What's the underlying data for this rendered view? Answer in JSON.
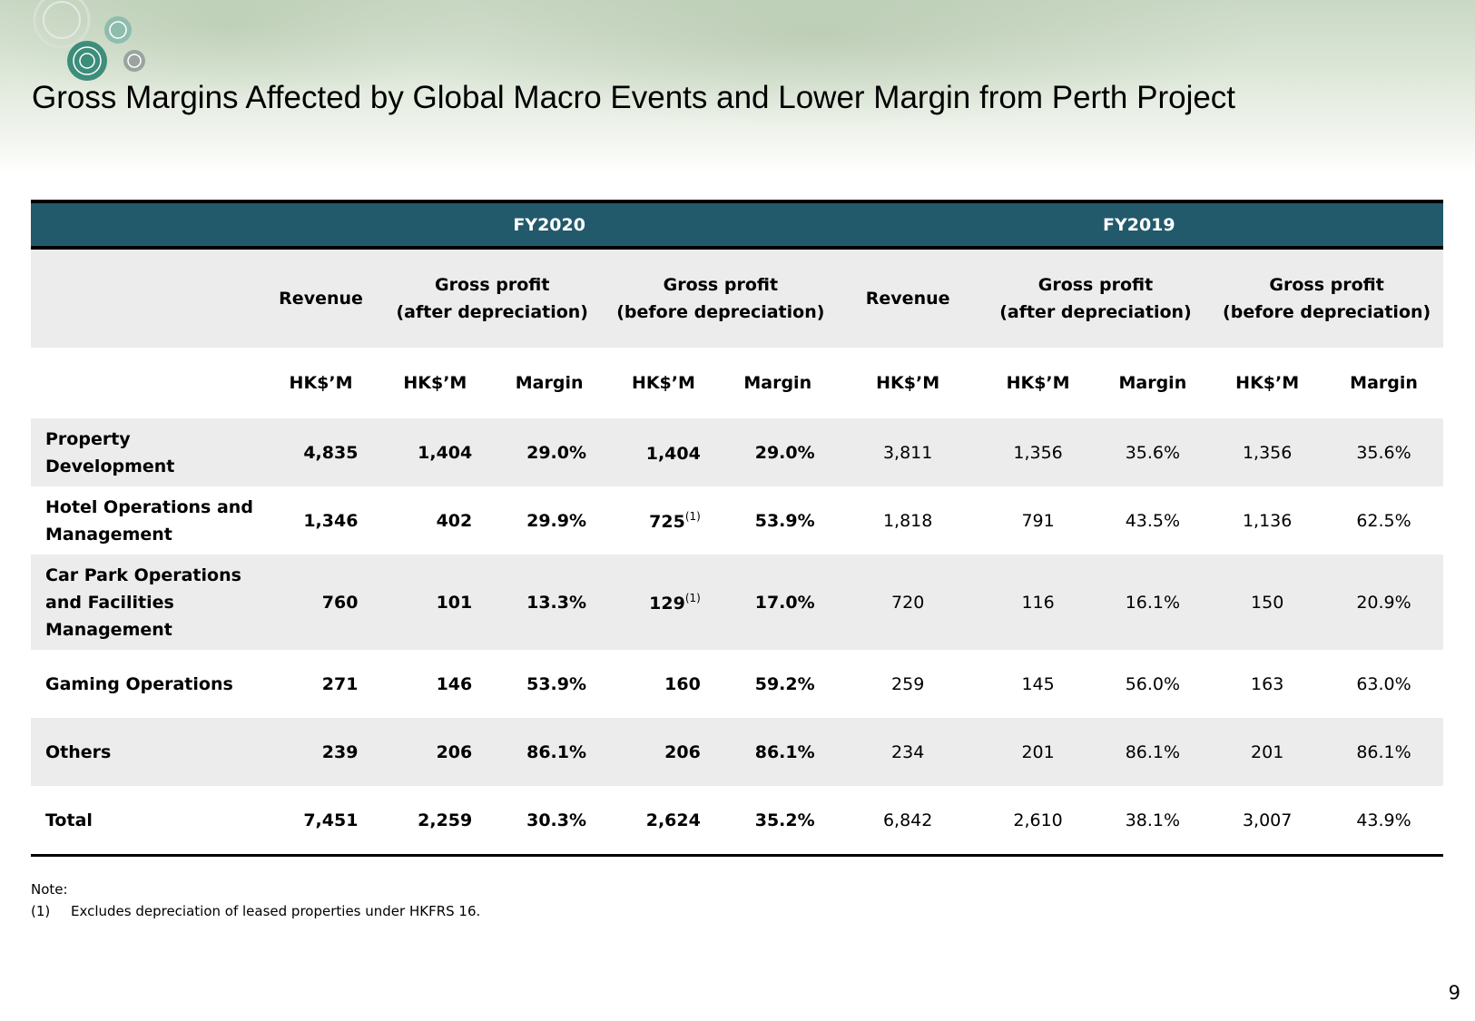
{
  "title": "Gross Margins Affected by Global Macro Events and Lower Margin from Perth Project",
  "years": {
    "fy2020": "FY2020",
    "fy2019": "FY2019"
  },
  "headers": {
    "revenue": "Revenue",
    "gp_after_1": "Gross profit",
    "gp_after_2": "(after depreciation)",
    "gp_before_1": "Gross profit",
    "gp_before_2": "(before depreciation)"
  },
  "units": {
    "hkm": "HK$’M",
    "margin": "Margin"
  },
  "rows": [
    {
      "seg1": "Property",
      "seg2": "Development",
      "fy20": {
        "rev": "4,835",
        "gpa": "1,404",
        "gpa_m": "29.0%",
        "gpb": "1,404",
        "gpb_note": "",
        "gpb_m": "29.0%"
      },
      "fy19": {
        "rev": "3,811",
        "gpa": "1,356",
        "gpa_m": "35.6%",
        "gpb": "1,356",
        "gpb_m": "35.6%"
      }
    },
    {
      "seg1": "Hotel Operations and",
      "seg2": "Management",
      "fy20": {
        "rev": "1,346",
        "gpa": "402",
        "gpa_m": "29.9%",
        "gpb": "725",
        "gpb_note": "(1)",
        "gpb_m": "53.9%"
      },
      "fy19": {
        "rev": "1,818",
        "gpa": "791",
        "gpa_m": "43.5%",
        "gpb": "1,136",
        "gpb_m": "62.5%"
      }
    },
    {
      "seg1": "Car Park Operations",
      "seg2": "and Facilities",
      "seg3": "Management",
      "fy20": {
        "rev": "760",
        "gpa": "101",
        "gpa_m": "13.3%",
        "gpb": "129",
        "gpb_note": "(1)",
        "gpb_m": "17.0%"
      },
      "fy19": {
        "rev": "720",
        "gpa": "116",
        "gpa_m": "16.1%",
        "gpb": "150",
        "gpb_m": "20.9%"
      }
    },
    {
      "seg1": "Gaming Operations",
      "fy20": {
        "rev": "271",
        "gpa": "146",
        "gpa_m": "53.9%",
        "gpb": "160",
        "gpb_note": "",
        "gpb_m": "59.2%"
      },
      "fy19": {
        "rev": "259",
        "gpa": "145",
        "gpa_m": "56.0%",
        "gpb": "163",
        "gpb_m": "63.0%"
      }
    },
    {
      "seg1": "Others",
      "fy20": {
        "rev": "239",
        "gpa": "206",
        "gpa_m": "86.1%",
        "gpb": "206",
        "gpb_note": "",
        "gpb_m": "86.1%"
      },
      "fy19": {
        "rev": "234",
        "gpa": "201",
        "gpa_m": "86.1%",
        "gpb": "201",
        "gpb_m": "86.1%"
      }
    },
    {
      "seg1": "Total",
      "fy20": {
        "rev": "7,451",
        "gpa": "2,259",
        "gpa_m": "30.3%",
        "gpb": "2,624",
        "gpb_note": "",
        "gpb_m": "35.2%"
      },
      "fy19": {
        "rev": "6,842",
        "gpa": "2,610",
        "gpa_m": "38.1%",
        "gpb": "3,007",
        "gpb_m": "43.9%"
      }
    }
  ],
  "note": {
    "label": "Note:",
    "mark": "(1)",
    "text": "Excludes depreciation of leased properties under HKFRS 16."
  },
  "page_number": "9",
  "colors": {
    "header_bar": "#225a6b",
    "row_grey": "#ececec"
  }
}
